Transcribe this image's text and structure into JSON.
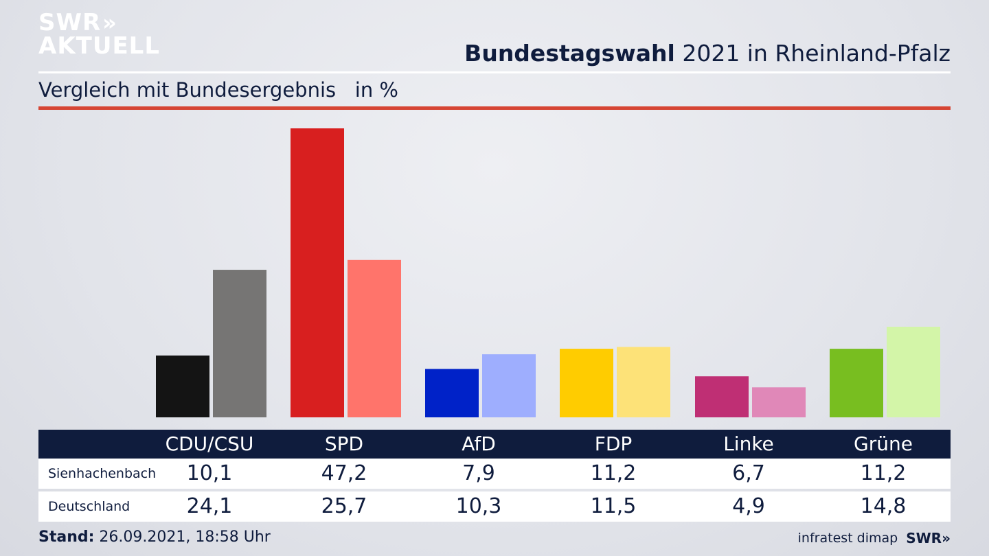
{
  "brand": {
    "line1": "SWR",
    "line2": "AKTUELL",
    "chevrons": "»",
    "footer_logo": "SWR»"
  },
  "header": {
    "title_bold": "Bundestagswahl",
    "title_rest": "2021 in Rheinland-Pfalz"
  },
  "subtitle": {
    "text": "Vergleich mit Bundesergebnis",
    "unit": "in %"
  },
  "table": {
    "row_labels": [
      "Sienhachenbach",
      "Deutschland"
    ],
    "local_values": [
      "10,1",
      "47,2",
      "7,9",
      "11,2",
      "6,7",
      "11,2"
    ],
    "national_values": [
      "24,1",
      "25,7",
      "10,3",
      "11,5",
      "4,9",
      "14,8"
    ]
  },
  "footer": {
    "stand_label": "Stand:",
    "stand_value": "26.09.2021, 18:58 Uhr",
    "source": "infratest dimap"
  },
  "chart_data": {
    "type": "bar",
    "title": "Bundestagswahl 2021 in Rheinland-Pfalz",
    "subtitle": "Vergleich mit Bundesergebnis",
    "unit": "in %",
    "categories": [
      "CDU/CSU",
      "SPD",
      "AfD",
      "FDP",
      "Linke",
      "Grüne"
    ],
    "series": [
      {
        "name": "Sienhachenbach",
        "values": [
          10.1,
          47.2,
          7.9,
          11.2,
          6.7,
          11.2
        ],
        "colors": [
          "#141414",
          "#d81f1f",
          "#0022c8",
          "#ffcc00",
          "#bf2f74",
          "#78be20"
        ]
      },
      {
        "name": "Deutschland",
        "values": [
          24.1,
          25.7,
          10.3,
          11.5,
          4.9,
          14.8
        ],
        "colors": [
          "#767574",
          "#ff746b",
          "#9eaefe",
          "#fde278",
          "#e088b8",
          "#d3f5a8"
        ]
      }
    ],
    "ylim": [
      0,
      47.2
    ],
    "grid": false
  }
}
